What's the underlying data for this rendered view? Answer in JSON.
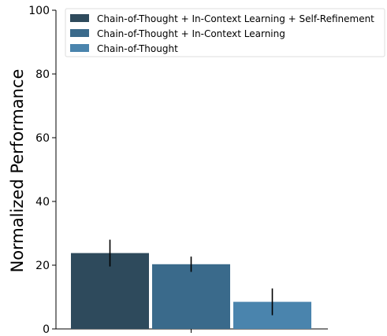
{
  "chart_data": {
    "type": "bar",
    "title": "",
    "xlabel": "",
    "ylabel": "Normalized Performance",
    "ylim": [
      0,
      100
    ],
    "yticks": [
      0,
      20,
      40,
      60,
      80,
      100
    ],
    "grid": false,
    "legend_position": "top-right",
    "categories": [
      ""
    ],
    "series": [
      {
        "name": "Chain-of-Thought + In-Context Learning + Self-Refinement",
        "values": [
          23.8
        ],
        "error": [
          4.2
        ],
        "color": "#2e4a5c"
      },
      {
        "name": "Chain-of-Thought + In-Context Learning",
        "values": [
          20.3
        ],
        "error": [
          2.4
        ],
        "color": "#3a6a8b"
      },
      {
        "name": "Chain-of-Thought",
        "values": [
          8.5
        ],
        "error": [
          4.2
        ],
        "color": "#4a84ad"
      }
    ]
  }
}
